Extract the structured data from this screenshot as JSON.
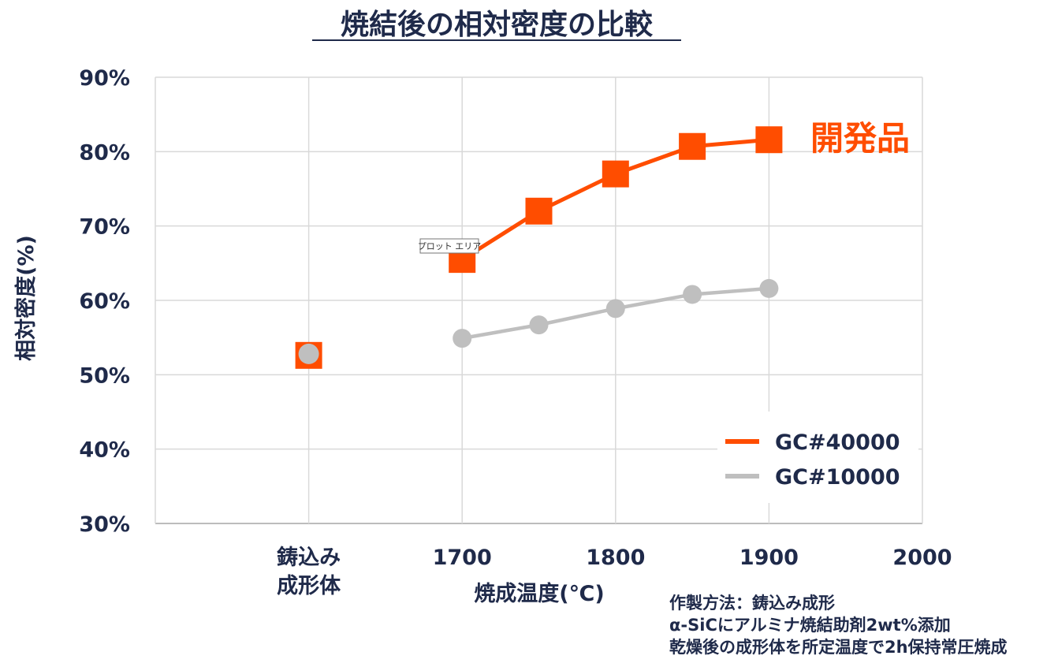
{
  "chart_data": {
    "type": "line",
    "title": "焼結後の相対密度の比較",
    "xlabel": "焼成温度(℃)",
    "ylabel": "相対密度(%)",
    "ylim": [
      30,
      90
    ],
    "yticks": [
      "30%",
      "40%",
      "50%",
      "60%",
      "70%",
      "80%",
      "90%"
    ],
    "yticks_values": [
      30,
      40,
      50,
      60,
      70,
      80,
      90
    ],
    "xlim": [
      1500,
      2000
    ],
    "xticks": [
      {
        "value": 1600,
        "lines": [
          "鋳込み",
          "成形体"
        ]
      },
      {
        "value": 1700,
        "lines": [
          "1700"
        ]
      },
      {
        "value": 1800,
        "lines": [
          "1800"
        ]
      },
      {
        "value": 1900,
        "lines": [
          "1900"
        ]
      },
      {
        "value": 2000,
        "lines": [
          "2000"
        ]
      }
    ],
    "grid": true,
    "legend_position": "bottom-right",
    "series": [
      {
        "name": "GC#40000",
        "color": "#ff4d00",
        "marker": "square",
        "points": [
          {
            "x": 1600,
            "y": 52.6,
            "connected": false
          },
          {
            "x": 1700,
            "y": 65.5,
            "connected": true
          },
          {
            "x": 1750,
            "y": 72.0,
            "connected": true
          },
          {
            "x": 1800,
            "y": 77.0,
            "connected": true
          },
          {
            "x": 1850,
            "y": 80.7,
            "connected": true
          },
          {
            "x": 1900,
            "y": 81.6,
            "connected": true
          }
        ]
      },
      {
        "name": "GC#10000",
        "color": "#bfbfbf",
        "marker": "circle",
        "points": [
          {
            "x": 1600,
            "y": 52.8,
            "connected": false
          },
          {
            "x": 1700,
            "y": 54.9,
            "connected": true
          },
          {
            "x": 1750,
            "y": 56.7,
            "connected": true
          },
          {
            "x": 1800,
            "y": 58.9,
            "connected": true
          },
          {
            "x": 1850,
            "y": 60.8,
            "connected": true
          },
          {
            "x": 1900,
            "y": 61.6,
            "connected": true
          }
        ]
      }
    ],
    "annotation": "開発品",
    "tooltip": "プロット エリア",
    "notes": [
      "作製方法：鋳込み成形",
      "α-SiCにアルミナ焼結助剤2wt%添加",
      "乾燥後の成形体を所定温度で2h保持常圧焼成"
    ]
  }
}
